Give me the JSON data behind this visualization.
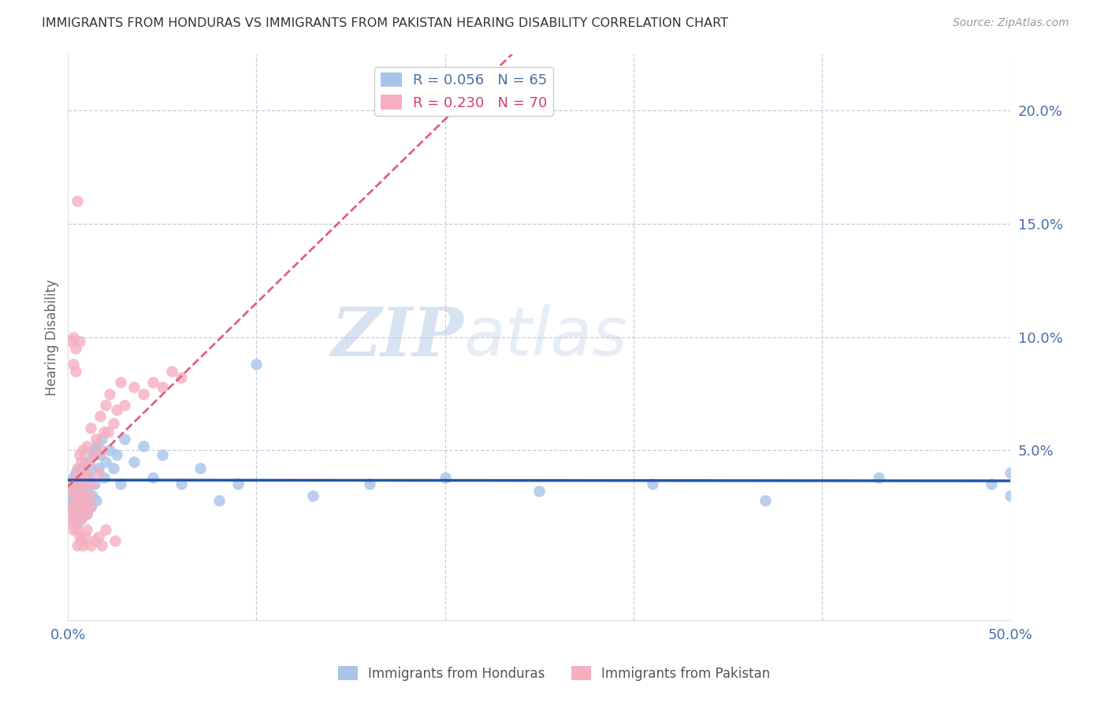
{
  "title": "IMMIGRANTS FROM HONDURAS VS IMMIGRANTS FROM PAKISTAN HEARING DISABILITY CORRELATION CHART",
  "source": "Source: ZipAtlas.com",
  "ylabel": "Hearing Disability",
  "ytick_labels": [
    "20.0%",
    "15.0%",
    "10.0%",
    "5.0%"
  ],
  "ytick_values": [
    0.2,
    0.15,
    0.1,
    0.05
  ],
  "xlim": [
    0.0,
    0.5
  ],
  "ylim": [
    -0.025,
    0.225
  ],
  "xtick_vals": [
    0.0,
    0.5
  ],
  "xtick_labels": [
    "0.0%",
    "50.0%"
  ],
  "honduras_color": "#a8c4e8",
  "pakistan_color": "#f5afc0",
  "trendline_honduras_color": "#2255aa",
  "trendline_pakistan_color": "#e06080",
  "background_color": "#ffffff",
  "watermark_zip": "ZIP",
  "watermark_atlas": "atlas",
  "legend_r1": "R = 0.056",
  "legend_n1": "N = 65",
  "legend_r2": "R = 0.230",
  "legend_n2": "N = 70",
  "legend_label1": "Immigrants from Honduras",
  "legend_label2": "Immigrants from Pakistan",
  "honduras_x": [
    0.001,
    0.002,
    0.002,
    0.003,
    0.003,
    0.003,
    0.004,
    0.004,
    0.004,
    0.005,
    0.005,
    0.005,
    0.006,
    0.006,
    0.006,
    0.007,
    0.007,
    0.007,
    0.008,
    0.008,
    0.008,
    0.009,
    0.009,
    0.01,
    0.01,
    0.01,
    0.011,
    0.011,
    0.012,
    0.012,
    0.013,
    0.013,
    0.014,
    0.014,
    0.015,
    0.015,
    0.016,
    0.017,
    0.018,
    0.019,
    0.02,
    0.022,
    0.024,
    0.026,
    0.028,
    0.03,
    0.035,
    0.04,
    0.045,
    0.05,
    0.06,
    0.07,
    0.08,
    0.09,
    0.1,
    0.13,
    0.16,
    0.2,
    0.25,
    0.31,
    0.37,
    0.43,
    0.49,
    0.5,
    0.5
  ],
  "honduras_y": [
    0.025,
    0.03,
    0.035,
    0.02,
    0.028,
    0.038,
    0.022,
    0.032,
    0.04,
    0.018,
    0.028,
    0.035,
    0.025,
    0.033,
    0.042,
    0.02,
    0.03,
    0.038,
    0.025,
    0.035,
    0.042,
    0.028,
    0.038,
    0.022,
    0.032,
    0.045,
    0.028,
    0.038,
    0.025,
    0.042,
    0.03,
    0.048,
    0.035,
    0.05,
    0.028,
    0.052,
    0.042,
    0.048,
    0.055,
    0.038,
    0.045,
    0.05,
    0.042,
    0.048,
    0.035,
    0.055,
    0.045,
    0.052,
    0.038,
    0.048,
    0.035,
    0.042,
    0.028,
    0.035,
    0.088,
    0.03,
    0.035,
    0.038,
    0.032,
    0.035,
    0.028,
    0.038,
    0.035,
    0.03,
    0.04
  ],
  "pakistan_x": [
    0.001,
    0.002,
    0.002,
    0.003,
    0.003,
    0.003,
    0.004,
    0.004,
    0.004,
    0.005,
    0.005,
    0.005,
    0.006,
    0.006,
    0.006,
    0.007,
    0.007,
    0.007,
    0.008,
    0.008,
    0.008,
    0.009,
    0.009,
    0.01,
    0.01,
    0.01,
    0.011,
    0.011,
    0.012,
    0.012,
    0.013,
    0.014,
    0.015,
    0.016,
    0.017,
    0.018,
    0.019,
    0.02,
    0.021,
    0.022,
    0.024,
    0.026,
    0.028,
    0.03,
    0.035,
    0.04,
    0.045,
    0.05,
    0.055,
    0.06,
    0.003,
    0.004,
    0.005,
    0.006,
    0.007,
    0.008,
    0.009,
    0.01,
    0.012,
    0.014,
    0.016,
    0.018,
    0.02,
    0.025,
    0.002,
    0.003,
    0.004,
    0.005,
    0.006,
    0.007
  ],
  "pakistan_y": [
    0.025,
    0.018,
    0.032,
    0.022,
    0.035,
    0.015,
    0.028,
    0.038,
    0.02,
    0.03,
    0.042,
    0.015,
    0.025,
    0.038,
    0.048,
    0.02,
    0.032,
    0.045,
    0.025,
    0.035,
    0.05,
    0.028,
    0.04,
    0.022,
    0.038,
    0.052,
    0.03,
    0.045,
    0.025,
    0.06,
    0.035,
    0.048,
    0.055,
    0.04,
    0.065,
    0.05,
    0.058,
    0.07,
    0.058,
    0.075,
    0.062,
    0.068,
    0.08,
    0.07,
    0.078,
    0.075,
    0.08,
    0.078,
    0.085,
    0.082,
    0.1,
    0.095,
    0.16,
    0.098,
    0.01,
    0.008,
    0.012,
    0.015,
    0.008,
    0.01,
    0.012,
    0.008,
    0.015,
    0.01,
    0.098,
    0.088,
    0.085,
    0.008,
    0.012,
    0.01
  ]
}
